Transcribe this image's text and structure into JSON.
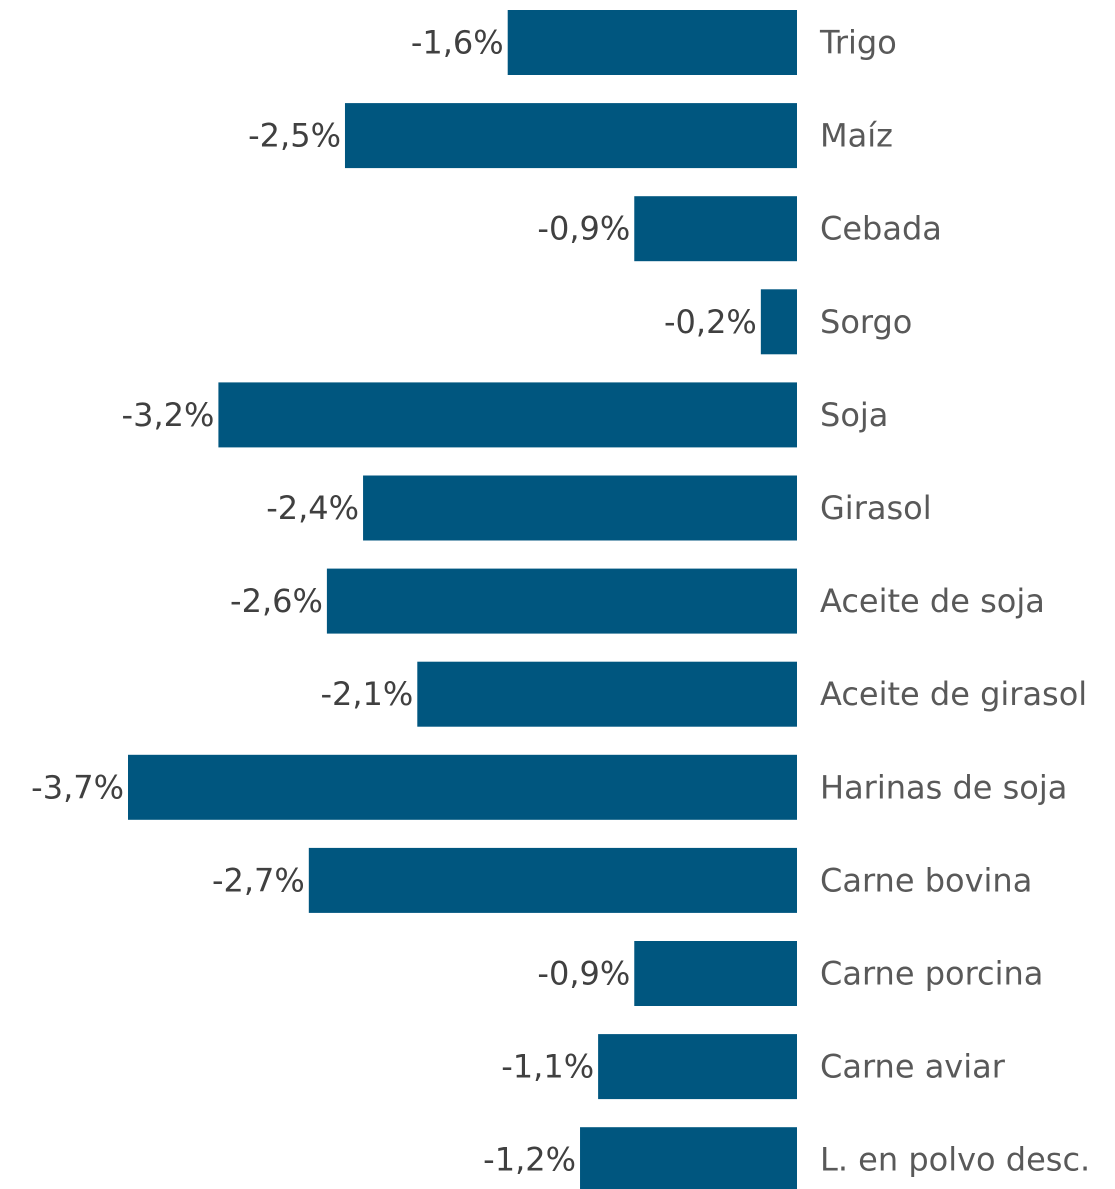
{
  "chart_data": {
    "type": "bar",
    "orientation": "horizontal",
    "categories": [
      "Trigo",
      "Maíz",
      "Cebada",
      "Sorgo",
      "Soja",
      "Girasol",
      "Aceite de soja",
      "Aceite de girasol",
      "Harinas de soja",
      "Carne bovina",
      "Carne porcina",
      "Carne aviar",
      "L. en polvo desc."
    ],
    "values": [
      -1.6,
      -2.5,
      -0.9,
      -0.2,
      -3.2,
      -2.4,
      -2.6,
      -2.1,
      -3.7,
      -2.7,
      -0.9,
      -1.1,
      -1.2
    ],
    "value_labels": [
      "-1,6%",
      "-2,5%",
      "-0,9%",
      "-0,2%",
      "-3,2%",
      "-2,4%",
      "-2,6%",
      "-2,1%",
      "-3,7%",
      "-2,7%",
      "-0,9%",
      "-1,1%",
      "-1,2%"
    ],
    "color": "#00567f"
  }
}
